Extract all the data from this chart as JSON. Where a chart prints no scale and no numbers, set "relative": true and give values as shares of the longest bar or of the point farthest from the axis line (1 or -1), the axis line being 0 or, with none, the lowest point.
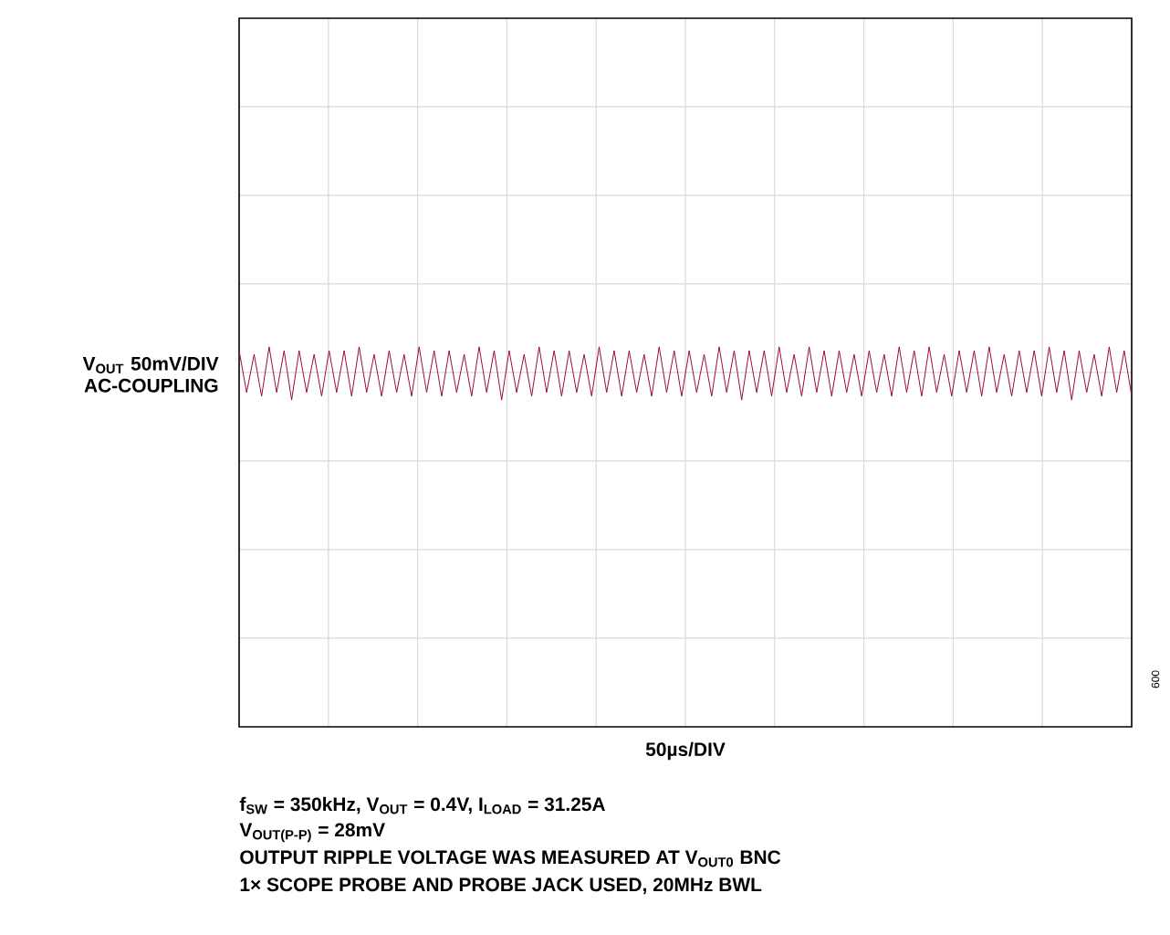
{
  "chart_data": {
    "type": "line",
    "relative": true,
    "grid": true,
    "ylabel": "V$_{OUT}$ 50mV/DIV AC-COUPLING",
    "xlabel": "50µs/DIV",
    "annotations": [
      "f$_{SW}$ = 350kHz, V$_{OUT}$ = 0.4V, I$_{LOAD}$ = 31.25A",
      "V$_{OUT(P-P)}$ = 28mV",
      "OUTPUT RIPPLE VOLTAGE WAS MEASURED AT V$_{OUT0}$ BNC",
      "1× SCOPE PROBE AND PROBE JACK USED, 20MHz BWL",
      "009"
    ],
    "categories": [
      null,
      null,
      null,
      null,
      null,
      null,
      null,
      null,
      null,
      null,
      null,
      null,
      null,
      null,
      null,
      null,
      null,
      null,
      null,
      null,
      null,
      null,
      null,
      null,
      null,
      null,
      null,
      null,
      null,
      null,
      null,
      null,
      null,
      null,
      null,
      null,
      null,
      null,
      null,
      null,
      null,
      null,
      null,
      null,
      null,
      null,
      null,
      null,
      null,
      null,
      null,
      null,
      null,
      null,
      null,
      null,
      null,
      null,
      null,
      null,
      null,
      null,
      null,
      null,
      null,
      null,
      null,
      null,
      null,
      null,
      null,
      null,
      null,
      null,
      null,
      null,
      null,
      null,
      null,
      null,
      null,
      null,
      null,
      null,
      null,
      null,
      null,
      null,
      null,
      null,
      null,
      null,
      null,
      null,
      null,
      null,
      null,
      null,
      null,
      null,
      null,
      null,
      null,
      null,
      null,
      null,
      null,
      null,
      null,
      null,
      null,
      null,
      null,
      null,
      null,
      null,
      null,
      null,
      null,
      null
    ],
    "series": [
      {
        "color": "#9b0a35",
        "values": [
          0.99,
          0.88,
          0.98,
          0.87,
          1,
          0.88,
          0.99,
          0.86,
          0.99,
          0.88,
          0.98,
          0.87,
          0.99,
          0.88,
          0.99,
          0.87,
          1,
          0.88,
          0.98,
          0.87,
          0.99,
          0.88,
          0.98,
          0.87,
          1,
          0.88,
          0.99,
          0.87,
          0.99,
          0.88,
          0.98,
          0.87,
          1,
          0.88,
          0.99,
          0.86,
          0.99,
          0.88,
          0.98,
          0.87,
          1,
          0.88,
          0.99,
          0.87,
          0.99,
          0.88,
          0.98,
          0.87,
          1,
          0.88,
          0.99,
          0.87,
          0.99,
          0.88,
          0.98,
          0.87,
          1,
          0.88,
          0.99,
          0.87,
          0.99,
          0.88,
          0.98,
          0.87,
          1,
          0.88,
          0.99,
          0.86,
          0.99,
          0.88,
          0.99,
          0.87,
          1,
          0.88,
          0.98,
          0.87,
          1,
          0.88,
          0.99,
          0.87,
          0.99,
          0.88,
          0.98,
          0.87,
          0.99,
          0.88,
          0.98,
          0.87,
          1,
          0.88,
          0.99,
          0.87,
          1,
          0.88,
          0.98,
          0.87,
          0.99,
          0.88,
          0.99,
          0.87,
          1,
          0.88,
          0.98,
          0.87,
          0.99,
          0.88,
          0.99,
          0.87,
          1,
          0.88,
          0.99,
          0.86,
          0.99,
          0.88,
          0.98,
          0.87,
          1,
          0.88,
          0.99,
          0.87
        ]
      }
    ]
  }
}
